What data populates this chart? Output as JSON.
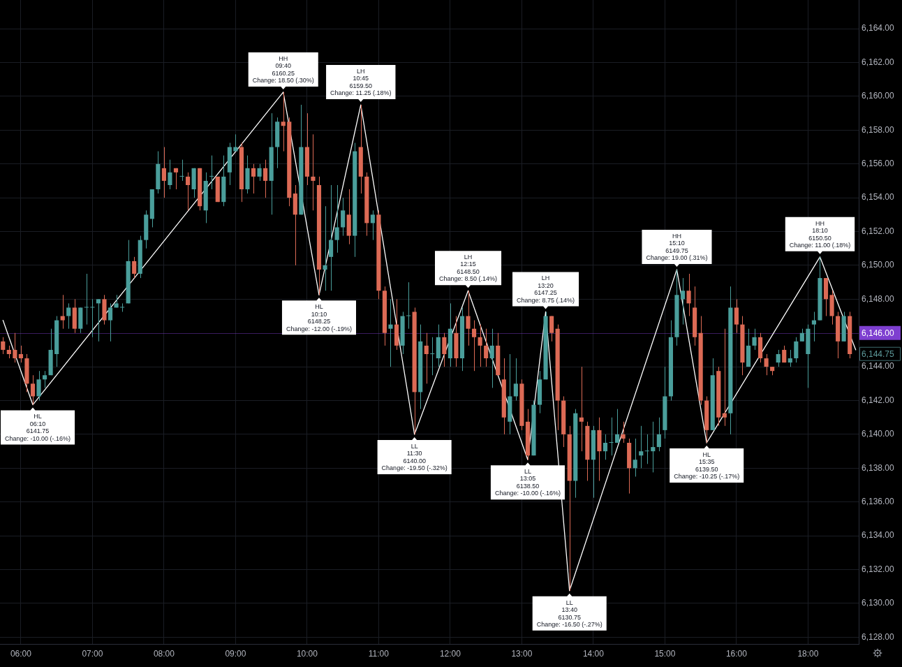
{
  "chart_data": {
    "type": "candlestick",
    "categories": [
      null,
      null,
      null,
      "06:00",
      null,
      null,
      null,
      null,
      null,
      null,
      null,
      null,
      null,
      null,
      null,
      "07:00",
      null,
      null,
      null,
      null,
      null,
      null,
      null,
      null,
      null,
      null,
      null,
      "08:00",
      null,
      null,
      null,
      null,
      null,
      null,
      null,
      null,
      null,
      null,
      null,
      "09:00",
      null,
      null,
      null,
      null,
      null,
      null,
      null,
      null,
      null,
      null,
      null,
      "10:00",
      null,
      null,
      null,
      null,
      null,
      null,
      null,
      null,
      null,
      null,
      null,
      "11:00",
      null,
      null,
      null,
      null,
      null,
      null,
      null,
      null,
      null,
      null,
      null,
      "12:00",
      null,
      null,
      null,
      null,
      null,
      null,
      null,
      null,
      null,
      null,
      null,
      "13:00",
      null,
      null,
      null,
      null,
      null,
      null,
      null,
      null,
      null,
      null,
      null,
      "14:00",
      null,
      null,
      null,
      null,
      null,
      null,
      null,
      null,
      null,
      null,
      null,
      "15:00",
      null,
      null,
      null,
      null,
      null,
      null,
      null,
      null,
      null,
      null,
      null,
      "16:00",
      null,
      null,
      null,
      null,
      null,
      null,
      null,
      null,
      null,
      null,
      null,
      "18:00",
      null,
      null,
      null,
      null,
      null,
      null,
      null,
      null
    ],
    "ohlc": [
      [
        6145.5,
        6145.75,
        6144.75,
        6145.0
      ],
      [
        6145.0,
        6145.25,
        6144.5,
        6144.75
      ],
      [
        6145.0,
        6146.0,
        6144.25,
        6144.5
      ],
      [
        6144.75,
        6145.25,
        6144.25,
        6144.5
      ],
      [
        6144.5,
        6144.75,
        6142.5,
        6143.0
      ],
      [
        6143.0,
        6143.5,
        6141.75,
        6142.25
      ],
      [
        6142.25,
        6143.75,
        6142.0,
        6143.25
      ],
      [
        6143.25,
        6143.75,
        6142.75,
        6143.5
      ],
      [
        6143.5,
        6146.25,
        6143.5,
        6145.0
      ],
      [
        6144.75,
        6147.0,
        6144.0,
        6146.75
      ],
      [
        6147.0,
        6148.25,
        6146.25,
        6146.75
      ],
      [
        6147.0,
        6147.75,
        6146.25,
        6147.5
      ],
      [
        6147.5,
        6148.0,
        6146.0,
        6146.25
      ],
      [
        6146.25,
        6147.5,
        6146.0,
        6147.5
      ],
      [
        6147.5,
        6149.5,
        6146.5,
        6147.5
      ],
      [
        6147.5,
        6148.0,
        6145.75,
        6147.5
      ],
      [
        6147.75,
        6148.0,
        6145.5,
        6148.0
      ],
      [
        6148.0,
        6148.25,
        6146.5,
        6146.75
      ],
      [
        6146.75,
        6147.75,
        6145.5,
        6147.5
      ],
      [
        6147.5,
        6148.25,
        6147.5,
        6147.75
      ],
      [
        6147.5,
        6147.75,
        6147.25,
        6147.5
      ],
      [
        6147.75,
        6151.5,
        6147.75,
        6150.25
      ],
      [
        6150.25,
        6150.5,
        6149.25,
        6149.5
      ],
      [
        6149.5,
        6151.75,
        6149.25,
        6151.5
      ],
      [
        6151.5,
        6153.25,
        6151.0,
        6153.0
      ],
      [
        6152.75,
        6154.5,
        6152.25,
        6154.5
      ],
      [
        6154.5,
        6156.75,
        6154.25,
        6156.0
      ],
      [
        6155.75,
        6157.0,
        6154.0,
        6155.0
      ],
      [
        6154.75,
        6156.25,
        6154.5,
        6155.5
      ],
      [
        6155.75,
        6155.75,
        6154.5,
        6155.5
      ],
      [
        6155.25,
        6156.25,
        6155.0,
        6155.25
      ],
      [
        6155.25,
        6155.5,
        6153.25,
        6154.75
      ],
      [
        6154.5,
        6155.75,
        6154.0,
        6155.75
      ],
      [
        6155.75,
        6155.75,
        6153.25,
        6153.5
      ],
      [
        6153.25,
        6155.5,
        6152.5,
        6155.0
      ],
      [
        6155.25,
        6156.5,
        6154.5,
        6155.25
      ],
      [
        6155.25,
        6155.25,
        6153.75,
        6153.75
      ],
      [
        6153.75,
        6156.5,
        6153.5,
        6155.25
      ],
      [
        6155.5,
        6157.25,
        6154.75,
        6157.0
      ],
      [
        6156.75,
        6157.75,
        6156.75,
        6157.0
      ],
      [
        6157.0,
        6157.25,
        6153.75,
        6154.5
      ],
      [
        6154.5,
        6156.5,
        6154.25,
        6155.75
      ],
      [
        6155.75,
        6156.0,
        6154.25,
        6155.25
      ],
      [
        6155.25,
        6156.0,
        6155.0,
        6155.75
      ],
      [
        6155.75,
        6156.25,
        6154.0,
        6155.0
      ],
      [
        6155.0,
        6159.0,
        6153.0,
        6157.0
      ],
      [
        6157.0,
        6158.75,
        6155.75,
        6158.5
      ],
      [
        6158.5,
        6160.25,
        6156.75,
        6158.25
      ],
      [
        6158.5,
        6158.75,
        6153.5,
        6154.0
      ],
      [
        6154.25,
        6154.75,
        6150.0,
        6153.0
      ],
      [
        6153.0,
        6159.5,
        6153.0,
        6157.0
      ],
      [
        6157.0,
        6159.0,
        6154.75,
        6155.25
      ],
      [
        6155.25,
        6157.75,
        6153.25,
        6155.0
      ],
      [
        6154.75,
        6155.25,
        6148.25,
        6149.75
      ],
      [
        6149.75,
        6153.5,
        6148.5,
        6150.0
      ],
      [
        6150.5,
        6154.75,
        6148.5,
        6151.5
      ],
      [
        6151.5,
        6154.75,
        6150.75,
        6152.25
      ],
      [
        6152.25,
        6154.0,
        6151.75,
        6153.25
      ],
      [
        6153.0,
        6154.5,
        6151.25,
        6151.75
      ],
      [
        6151.75,
        6157.25,
        6150.5,
        6156.75
      ],
      [
        6157.0,
        6159.5,
        6154.25,
        6155.25
      ],
      [
        6155.25,
        6155.5,
        6151.75,
        6152.5
      ],
      [
        6152.5,
        6153.25,
        6151.5,
        6153.0
      ],
      [
        6153.0,
        6153.25,
        6148.0,
        6148.5
      ],
      [
        6148.5,
        6148.75,
        6145.25,
        6146.0
      ],
      [
        6146.25,
        6148.0,
        6144.0,
        6146.5
      ],
      [
        6146.5,
        6148.0,
        6145.0,
        6145.25
      ],
      [
        6145.25,
        6147.25,
        6144.75,
        6147.0
      ],
      [
        6147.0,
        6149.0,
        6146.25,
        6147.0
      ],
      [
        6147.25,
        6147.5,
        6140.0,
        6142.5
      ],
      [
        6142.5,
        6146.5,
        6141.5,
        6145.5
      ],
      [
        6145.25,
        6146.0,
        6143.0,
        6144.75
      ],
      [
        6144.75,
        6145.75,
        6143.5,
        6144.75
      ],
      [
        6144.5,
        6146.5,
        6144.0,
        6145.75
      ],
      [
        6145.75,
        6146.0,
        6144.0,
        6144.75
      ],
      [
        6144.5,
        6147.75,
        6144.0,
        6146.25
      ],
      [
        6146.0,
        6147.0,
        6144.0,
        6144.5
      ],
      [
        6144.5,
        6147.5,
        6143.75,
        6147.0
      ],
      [
        6147.0,
        6148.5,
        6145.25,
        6146.25
      ],
      [
        6146.25,
        6146.75,
        6143.75,
        6145.75
      ],
      [
        6145.75,
        6146.5,
        6144.0,
        6145.25
      ],
      [
        6145.25,
        6146.25,
        6144.0,
        6144.5
      ],
      [
        6144.5,
        6146.25,
        6142.75,
        6145.25
      ],
      [
        6145.25,
        6146.0,
        6143.5,
        6143.5
      ],
      [
        6143.25,
        6144.5,
        6140.0,
        6141.0
      ],
      [
        6140.75,
        6144.75,
        6140.0,
        6142.25
      ],
      [
        6142.25,
        6144.5,
        6142.0,
        6143.0
      ],
      [
        6143.0,
        6143.25,
        6140.25,
        6140.5
      ],
      [
        6140.75,
        6141.5,
        6138.5,
        6138.75
      ],
      [
        6138.75,
        6142.0,
        6138.75,
        6141.75
      ],
      [
        6141.75,
        6143.75,
        6141.25,
        6143.25
      ],
      [
        6143.25,
        6147.25,
        6143.25,
        6147.0
      ],
      [
        6147.0,
        6147.0,
        6145.5,
        6146.0
      ],
      [
        6146.25,
        6146.5,
        6140.25,
        6142.0
      ],
      [
        6142.0,
        6142.25,
        6139.25,
        6140.0
      ],
      [
        6140.0,
        6140.5,
        6130.75,
        6137.25
      ],
      [
        6137.25,
        6141.5,
        6136.25,
        6141.25
      ],
      [
        6141.0,
        6144.0,
        6139.0,
        6140.75
      ],
      [
        6140.5,
        6140.75,
        6137.25,
        6138.5
      ],
      [
        6138.5,
        6140.5,
        6136.25,
        6140.25
      ],
      [
        6140.25,
        6141.0,
        6137.25,
        6139.0
      ],
      [
        6139.0,
        6140.0,
        6138.5,
        6139.5
      ],
      [
        6139.5,
        6141.0,
        6138.75,
        6139.5
      ],
      [
        6139.5,
        6141.5,
        6139.5,
        6140.0
      ],
      [
        6140.0,
        6140.75,
        6139.5,
        6139.75
      ],
      [
        6139.5,
        6139.75,
        6136.5,
        6138.0
      ],
      [
        6138.0,
        6139.75,
        6137.5,
        6138.5
      ],
      [
        6138.75,
        6140.5,
        6138.0,
        6139.0
      ],
      [
        6139.0,
        6140.0,
        6138.25,
        6139.0
      ],
      [
        6139.0,
        6140.75,
        6137.75,
        6139.25
      ],
      [
        6139.25,
        6141.0,
        6139.0,
        6140.0
      ],
      [
        6140.25,
        6144.0,
        6139.75,
        6142.25
      ],
      [
        6142.25,
        6146.75,
        6142.0,
        6145.75
      ],
      [
        6145.75,
        6149.75,
        6145.25,
        6148.25
      ],
      [
        6148.0,
        6149.25,
        6146.5,
        6148.5
      ],
      [
        6148.5,
        6149.5,
        6147.0,
        6147.75
      ],
      [
        6147.5,
        6148.75,
        6145.25,
        6145.75
      ],
      [
        6146.0,
        6147.0,
        6141.75,
        6142.0
      ],
      [
        6142.0,
        6142.25,
        6139.5,
        6140.25
      ],
      [
        6140.25,
        6144.5,
        6140.25,
        6143.5
      ],
      [
        6143.75,
        6144.0,
        6140.5,
        6141.0
      ],
      [
        6141.25,
        6146.25,
        6140.5,
        6141.0
      ],
      [
        6141.25,
        6148.75,
        6140.0,
        6147.5
      ],
      [
        6147.5,
        6148.0,
        6146.0,
        6146.5
      ],
      [
        6146.5,
        6147.0,
        6143.5,
        6144.25
      ],
      [
        6144.0,
        6146.25,
        6144.0,
        6145.25
      ],
      [
        6145.25,
        6146.25,
        6145.0,
        6145.75
      ],
      [
        6145.75,
        6146.0,
        6144.25,
        6144.5
      ],
      [
        6144.5,
        6144.75,
        6143.5,
        6144.0
      ],
      [
        6144.0,
        6144.0,
        6143.5,
        6143.75
      ],
      [
        6144.25,
        6145.0,
        6144.0,
        6144.75
      ],
      [
        6145.0,
        6145.25,
        6144.25,
        6144.25
      ],
      [
        6144.25,
        6145.0,
        6144.0,
        6144.5
      ],
      [
        6144.5,
        6145.75,
        6144.25,
        6145.5
      ],
      [
        6145.5,
        6146.25,
        6145.5,
        6146.0
      ],
      [
        6144.75,
        6146.5,
        6142.75,
        6146.25
      ],
      [
        6146.5,
        6147.25,
        6145.5,
        6146.75
      ],
      [
        6146.75,
        6150.5,
        6146.75,
        6149.25
      ],
      [
        6149.25,
        6149.25,
        6147.0,
        6148.0
      ],
      [
        6148.25,
        6148.5,
        6146.5,
        6147.0
      ],
      [
        6147.0,
        6147.25,
        6144.5,
        6145.5
      ],
      [
        6145.5,
        6147.25,
        6145.5,
        6147.0
      ],
      [
        6147.0,
        6147.25,
        6144.5,
        6144.75
      ],
      null
    ],
    "colors": [
      "#dc6a55",
      "#dc6a55",
      "#dc6a55",
      "#dc6a55",
      "#dc6a55",
      "#dc6a55",
      "#4a9e9b",
      "#4a9e9b",
      "#4a9e9b",
      "#4a9e9b",
      "#dc6a55",
      "#4a9e9b",
      "#dc6a55",
      "#4a9e9b",
      "#4a9e9b",
      "#4a9e9b",
      "#4a9e9b",
      "#dc6a55",
      "#4a9e9b",
      "#4a9e9b",
      "#4a9e9b",
      "#4a9e9b",
      "#dc6a55",
      "#4a9e9b",
      "#4a9e9b",
      "#4a9e9b",
      "#4a9e9b",
      "#dc6a55",
      "#4a9e9b",
      "#dc6a55",
      "#4a9e9b",
      "#dc6a55",
      "#4a9e9b",
      "#dc6a55",
      "#4a9e9b",
      "#4a9e9b",
      "#dc6a55",
      "#4a9e9b",
      "#4a9e9b",
      "#4a9e9b",
      "#dc6a55",
      "#4a9e9b",
      "#dc6a55",
      "#4a9e9b",
      "#dc6a55",
      "#4a9e9b",
      "#4a9e9b",
      "#dc6a55",
      "#dc6a55",
      "#dc6a55",
      "#4a9e9b",
      "#dc6a55",
      "#dc6a55",
      "#dc6a55",
      "#4a9e9b",
      "#4a9e9b",
      "#4a9e9b",
      "#4a9e9b",
      "#dc6a55",
      "#4a9e9b",
      "#dc6a55",
      "#dc6a55",
      "#4a9e9b",
      "#dc6a55",
      "#dc6a55",
      "#4a9e9b",
      "#dc6a55",
      "#4a9e9b",
      "#4a9e9b",
      "#dc6a55",
      "#4a9e9b",
      "#dc6a55",
      "#4a9e9b",
      "#4a9e9b",
      "#dc6a55",
      "#4a9e9b",
      "#dc6a55",
      "#4a9e9b",
      "#dc6a55",
      "#dc6a55",
      "#dc6a55",
      "#dc6a55",
      "#4a9e9b",
      "#dc6a55",
      "#dc6a55",
      "#4a9e9b",
      "#4a9e9b",
      "#dc6a55",
      "#dc6a55",
      "#4a9e9b",
      "#4a9e9b",
      "#4a9e9b",
      "#dc6a55",
      "#dc6a55",
      "#dc6a55",
      "#dc6a55",
      "#4a9e9b",
      "#dc6a55",
      "#dc6a55",
      "#4a9e9b",
      "#dc6a55",
      "#4a9e9b",
      "#4a9e9b",
      "#4a9e9b",
      "#dc6a55",
      "#dc6a55",
      "#4a9e9b",
      "#4a9e9b",
      "#4a9e9b",
      "#4a9e9b",
      "#4a9e9b",
      "#4a9e9b",
      "#4a9e9b",
      "#4a9e9b",
      "#4a9e9b",
      "#dc6a55",
      "#dc6a55",
      "#dc6a55",
      "#dc6a55",
      "#4a9e9b",
      "#dc6a55",
      "#dc6a55",
      "#4a9e9b",
      "#dc6a55",
      "#dc6a55",
      "#4a9e9b",
      "#4a9e9b",
      "#dc6a55",
      "#dc6a55",
      "#dc6a55",
      "#4a9e9b",
      "#dc6a55",
      "#4a9e9b",
      "#4a9e9b",
      "#4a9e9b",
      "#4a9e9b",
      "#4a9e9b",
      "#4a9e9b",
      "#dc6a55",
      "#dc6a55",
      "#dc6a55",
      "#4a9e9b",
      "#dc6a55",
      null
    ],
    "series": [
      {
        "type": "line",
        "color": "#ffffff",
        "values": [
          6146.75,
          null,
          null,
          null,
          null,
          6141.75,
          null,
          null,
          null,
          null,
          null,
          null,
          null,
          null,
          null,
          null,
          null,
          null,
          null,
          null,
          null,
          null,
          null,
          null,
          null,
          null,
          null,
          null,
          null,
          null,
          null,
          null,
          null,
          null,
          null,
          null,
          null,
          null,
          null,
          null,
          null,
          null,
          null,
          null,
          null,
          null,
          null,
          6160.25,
          null,
          null,
          null,
          null,
          null,
          6148.25,
          null,
          null,
          null,
          null,
          null,
          null,
          6159.5,
          null,
          null,
          null,
          null,
          null,
          null,
          null,
          null,
          6140.0,
          null,
          null,
          null,
          null,
          null,
          null,
          null,
          null,
          6148.5,
          null,
          null,
          null,
          null,
          null,
          null,
          null,
          null,
          null,
          6138.5,
          null,
          null,
          6147.25,
          null,
          null,
          null,
          6130.75,
          null,
          null,
          null,
          null,
          null,
          null,
          null,
          null,
          null,
          null,
          null,
          null,
          null,
          null,
          null,
          null,
          null,
          6149.75,
          null,
          null,
          null,
          null,
          6139.5,
          null,
          null,
          null,
          null,
          null,
          null,
          null,
          null,
          null,
          null,
          null,
          null,
          null,
          null,
          null,
          null,
          null,
          null,
          6150.5,
          null,
          null,
          null,
          null,
          null,
          6145.0
        ]
      }
    ],
    "ylim": [
      6127.6,
      6165.7
    ],
    "yticks": [
      {
        "value": 6128,
        "label": "6,128.00"
      },
      {
        "value": 6130,
        "label": "6,130.00"
      },
      {
        "value": 6132,
        "label": "6,132.00"
      },
      {
        "value": 6134,
        "label": "6,134.00"
      },
      {
        "value": 6136,
        "label": "6,136.00"
      },
      {
        "value": 6138,
        "label": "6,138.00"
      },
      {
        "value": 6140,
        "label": "6,140.00"
      },
      {
        "value": 6142,
        "label": "6,142.00"
      },
      {
        "value": 6144,
        "label": "6,144.00"
      },
      {
        "value": 6148,
        "label": "6,148.00"
      },
      {
        "value": 6150,
        "label": "6,150.00"
      },
      {
        "value": 6152,
        "label": "6,152.00"
      },
      {
        "value": 6154,
        "label": "6,154.00"
      },
      {
        "value": 6156,
        "label": "6,156.00"
      },
      {
        "value": 6158,
        "label": "6,158.00"
      },
      {
        "value": 6160,
        "label": "6,160.00"
      },
      {
        "value": 6162,
        "label": "6,162.00"
      },
      {
        "value": 6164,
        "label": "6,164.00"
      }
    ],
    "grid": true,
    "ref_lines": [
      {
        "axis": "y",
        "value": 6146,
        "label": "6,146.00",
        "color": "#7e3fd0"
      }
    ],
    "annotations": [
      {
        "text": "HL\n06:10\n6141.75\nChange: -10.00 (-.16%)",
        "y": 6141.75
      },
      {
        "text": "HH\n09:40\n6160.25\nChange: 18.50 (.30%)",
        "y": 6160.25
      },
      {
        "text": "HL\n10:10\n6148.25\nChange: -12.00 (-.19%)",
        "y": 6148.25
      },
      {
        "text": "LH\n10:45\n6159.50\nChange: 11.25 (.18%)",
        "y": 6159.5
      },
      {
        "text": "LL\n11:30\n6140.00\nChange: -19.50 (-.32%)",
        "y": 6140.0
      },
      {
        "text": "LH\n12:15\n6148.50\nChange: 8.50 (.14%)",
        "y": 6148.5
      },
      {
        "text": "LL\n13:05\n6138.50\nChange: -10.00 (-.16%)",
        "y": 6138.5
      },
      {
        "text": "LH\n13:20\n6147.25\nChange: 8.75 (.14%)",
        "y": 6147.25
      },
      {
        "text": "LL\n13:40\n6130.75\nChange: -16.50 (-.27%)",
        "y": 6130.75
      },
      {
        "text": "HH\n15:10\n6149.75\nChange: 19.00 (.31%)",
        "y": 6149.75
      },
      {
        "text": "HL\n15:35\n6139.50\nChange: -10.25 (-.17%)",
        "y": 6139.5
      },
      {
        "text": "HH\n18:10\n6150.50\nChange: 11.00 (.18%)",
        "y": 6150.5
      },
      "6,144.75"
    ]
  }
}
